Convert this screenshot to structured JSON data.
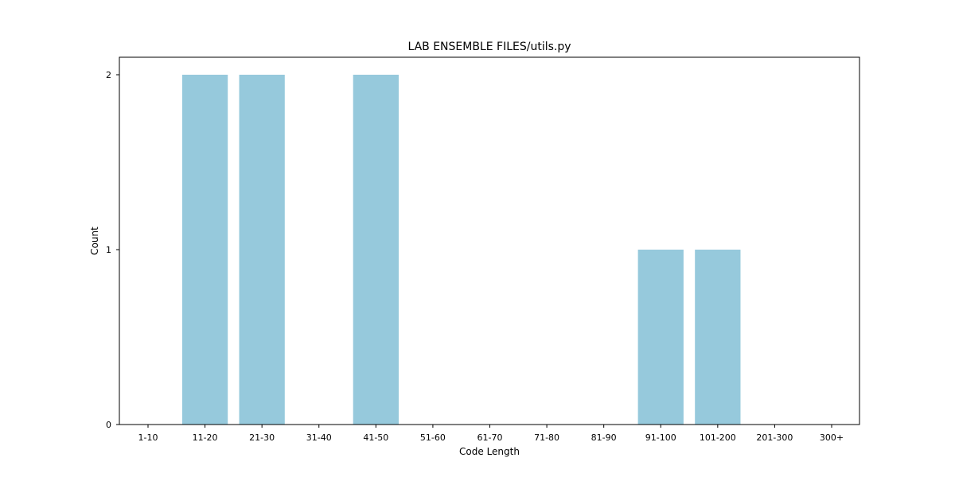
{
  "chart_data": {
    "type": "bar",
    "title": "LAB ENSEMBLE FILES/utils.py",
    "xlabel": "Code Length",
    "ylabel": "Count",
    "categories": [
      "1-10",
      "11-20",
      "21-30",
      "31-40",
      "41-50",
      "51-60",
      "61-70",
      "71-80",
      "81-90",
      "91-100",
      "101-200",
      "201-300",
      "300+"
    ],
    "values": [
      0,
      2,
      2,
      0,
      2,
      0,
      0,
      0,
      0,
      1,
      1,
      0,
      0
    ],
    "ylim": [
      0,
      2.1
    ],
    "yticks": [
      0,
      1,
      2
    ],
    "bar_color": "#96c9dc",
    "grid": false,
    "legend": "none"
  }
}
